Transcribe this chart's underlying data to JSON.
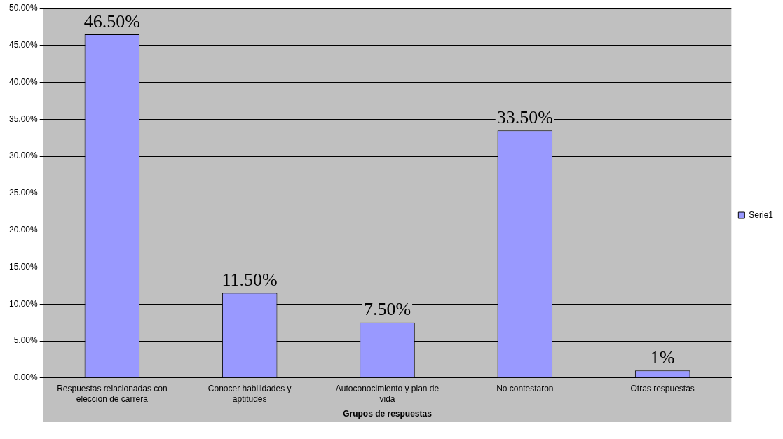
{
  "chart_data": {
    "type": "bar",
    "xlabel": "Grupos de respuestas",
    "categories": [
      "Respuestas relacionadas con elección de carrera",
      "Conocer habilidades y aptitudes",
      "Autoconocimiento y plan de vida",
      "No contestaron",
      "Otras respuestas"
    ],
    "series": [
      {
        "name": "Serie1",
        "color": "#9999ff",
        "values": [
          46.5,
          11.5,
          7.5,
          33.5,
          1
        ],
        "value_labels": [
          "46.50%",
          "11.50%",
          "7.50%",
          "33.50%",
          "1%"
        ]
      }
    ],
    "ylim": [
      0,
      50
    ],
    "yticks": [
      {
        "value": 0,
        "label": "0.00%"
      },
      {
        "value": 5,
        "label": "5.00%"
      },
      {
        "value": 10,
        "label": "10.00%"
      },
      {
        "value": 15,
        "label": "15.00%"
      },
      {
        "value": 20,
        "label": "20.00%"
      },
      {
        "value": 25,
        "label": "25.00%"
      },
      {
        "value": 30,
        "label": "30.00%"
      },
      {
        "value": 35,
        "label": "35.00%"
      },
      {
        "value": 40,
        "label": "40.00%"
      },
      {
        "value": 45,
        "label": "45.00%"
      },
      {
        "value": 50,
        "label": "50.00%"
      }
    ],
    "grid": "y",
    "legend": "right"
  }
}
